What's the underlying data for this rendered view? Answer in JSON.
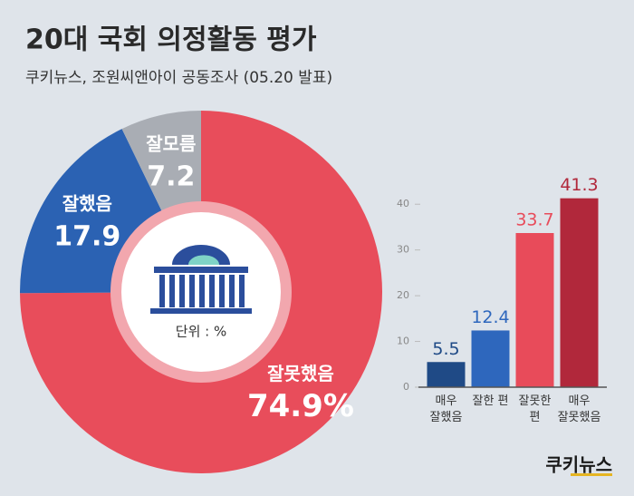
{
  "chart_data": [
    {
      "type": "donut",
      "title": "20대 국회 의정활동 평가",
      "subtitle": "쿠키뉴스, 조원씨앤아이 공동조사 (05.20 발표)",
      "categories": [
        "잘못했음",
        "잘했음",
        "잘모름"
      ],
      "values": [
        74.9,
        17.9,
        7.2
      ],
      "value_labels": [
        "74.9%",
        "17.9",
        "7.2"
      ],
      "colors": [
        "#e84d5b",
        "#2b62b3",
        "#a9adb4"
      ],
      "annotation": "단위 : %"
    },
    {
      "type": "bar",
      "categories": [
        "매우\n잘했음",
        "잘한 편",
        "잘못한\n편",
        "매우\n잘못했음"
      ],
      "values": [
        5.5,
        12.4,
        33.7,
        41.3
      ],
      "colors": [
        "#1f4a86",
        "#2e67bd",
        "#e84b5a",
        "#b1283b"
      ],
      "ylim": [
        0,
        45
      ],
      "yticks": [
        0,
        10,
        20,
        30,
        40
      ],
      "grid": false,
      "logo": "쿠키뉴스"
    }
  ]
}
